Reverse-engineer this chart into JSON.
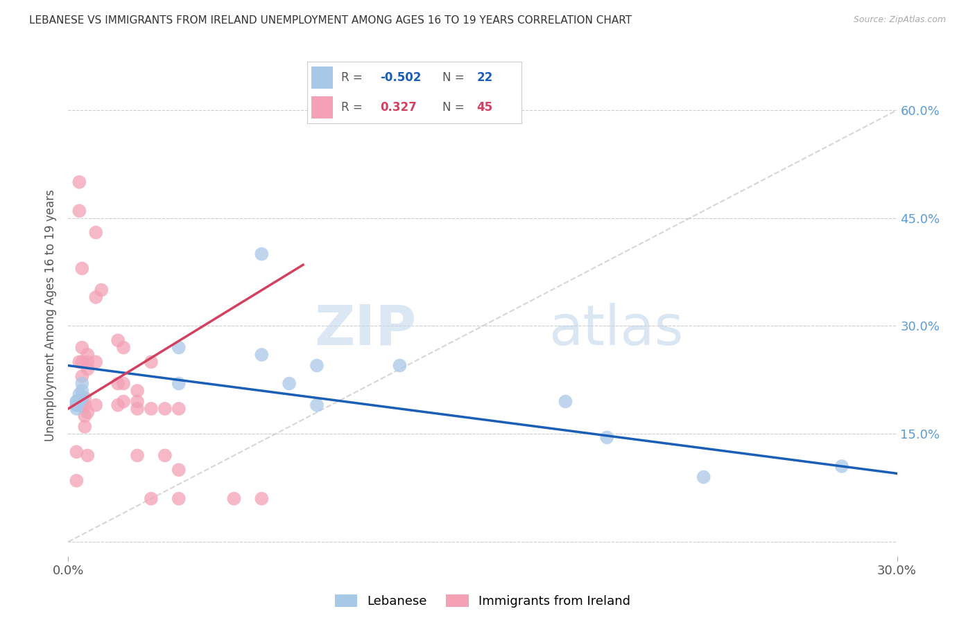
{
  "title": "LEBANESE VS IMMIGRANTS FROM IRELAND UNEMPLOYMENT AMONG AGES 16 TO 19 YEARS CORRELATION CHART",
  "source": "Source: ZipAtlas.com",
  "ylabel": "Unemployment Among Ages 16 to 19 years",
  "legend_blue": {
    "R": "-0.502",
    "N": "22",
    "label": "Lebanese"
  },
  "legend_pink": {
    "R": "0.327",
    "N": "45",
    "label": "Immigrants from Ireland"
  },
  "xlim": [
    0.0,
    0.3
  ],
  "ylim": [
    -0.02,
    0.65
  ],
  "yticks": [
    0.0,
    0.15,
    0.3,
    0.45,
    0.6
  ],
  "right_ytick_labels": [
    "",
    "15.0%",
    "30.0%",
    "45.0%",
    "60.0%"
  ],
  "blue_scatter_x": [
    0.003,
    0.003,
    0.003,
    0.003,
    0.003,
    0.004,
    0.004,
    0.005,
    0.005,
    0.005,
    0.04,
    0.04,
    0.07,
    0.07,
    0.08,
    0.09,
    0.09,
    0.12,
    0.18,
    0.195,
    0.23,
    0.28
  ],
  "blue_scatter_y": [
    0.195,
    0.19,
    0.195,
    0.19,
    0.185,
    0.205,
    0.195,
    0.22,
    0.21,
    0.2,
    0.27,
    0.22,
    0.4,
    0.26,
    0.22,
    0.19,
    0.245,
    0.245,
    0.195,
    0.145,
    0.09,
    0.105
  ],
  "pink_scatter_x": [
    0.003,
    0.003,
    0.004,
    0.004,
    0.004,
    0.004,
    0.005,
    0.005,
    0.005,
    0.005,
    0.005,
    0.006,
    0.006,
    0.006,
    0.006,
    0.007,
    0.007,
    0.007,
    0.007,
    0.007,
    0.01,
    0.01,
    0.01,
    0.01,
    0.012,
    0.018,
    0.018,
    0.018,
    0.02,
    0.02,
    0.02,
    0.025,
    0.025,
    0.025,
    0.025,
    0.03,
    0.03,
    0.03,
    0.035,
    0.035,
    0.04,
    0.04,
    0.04,
    0.06,
    0.07
  ],
  "pink_scatter_y": [
    0.125,
    0.085,
    0.5,
    0.46,
    0.25,
    0.19,
    0.38,
    0.27,
    0.25,
    0.23,
    0.19,
    0.2,
    0.19,
    0.175,
    0.16,
    0.26,
    0.25,
    0.24,
    0.18,
    0.12,
    0.43,
    0.34,
    0.25,
    0.19,
    0.35,
    0.28,
    0.22,
    0.19,
    0.27,
    0.22,
    0.195,
    0.21,
    0.195,
    0.185,
    0.12,
    0.25,
    0.185,
    0.06,
    0.185,
    0.12,
    0.185,
    0.1,
    0.06,
    0.06,
    0.06
  ],
  "blue_line_x": [
    0.0,
    0.3
  ],
  "blue_line_y": [
    0.245,
    0.095
  ],
  "pink_line_x": [
    0.0,
    0.085
  ],
  "pink_line_y": [
    0.185,
    0.385
  ],
  "blue_color": "#a8c8e8",
  "pink_color": "#f4a0b5",
  "blue_line_color": "#1a5eb8",
  "pink_line_color": "#d44060",
  "dashed_line_x": [
    0.0,
    0.3
  ],
  "dashed_line_y": [
    0.0,
    0.6
  ],
  "watermark_zip": "ZIP",
  "watermark_atlas": "atlas",
  "background_color": "#ffffff"
}
